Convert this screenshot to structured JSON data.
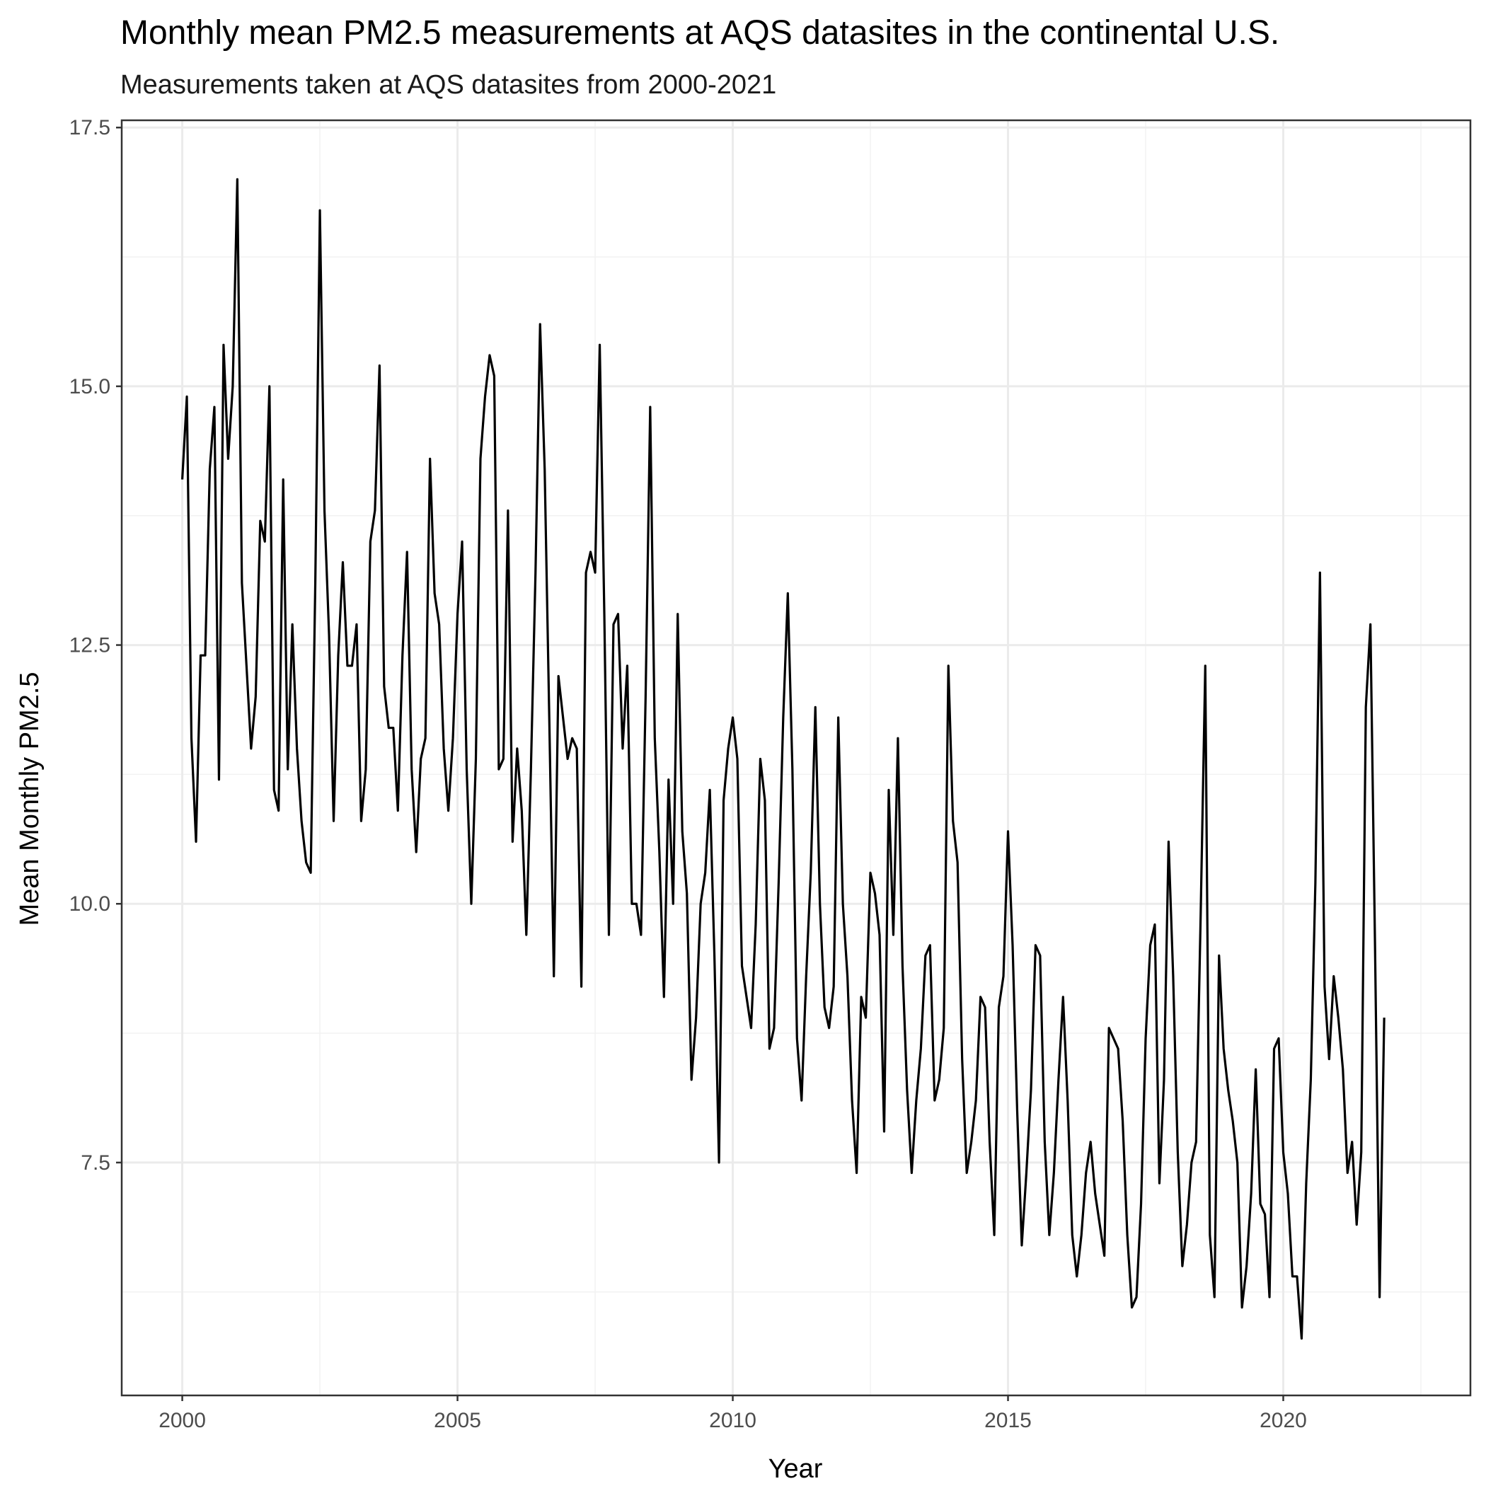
{
  "chart_data": {
    "type": "line",
    "title": "Monthly mean PM2.5 measurements at AQS datasites in the continental U.S.",
    "subtitle": "Measurements taken at AQS datasites from 2000-2021",
    "xlabel": "Year",
    "ylabel": "Mean Monthly PM2.5",
    "xlim": [
      1998.9,
      2023.4
    ],
    "ylim": [
      5.25,
      17.57
    ],
    "x_ticks": [
      2000,
      2005,
      2010,
      2015,
      2020
    ],
    "x_tick_labels": [
      "2000",
      "2005",
      "2010",
      "2015",
      "2020"
    ],
    "y_ticks": [
      7.5,
      10.0,
      12.5,
      15.0,
      17.5
    ],
    "y_tick_labels": [
      "7.5",
      "10.0",
      "12.5",
      "15.0",
      "17.5"
    ],
    "grid": true,
    "line_color": "#000000",
    "start": "2000-01",
    "interval": "monthly",
    "series": [
      {
        "values": [
          14.1,
          14.9,
          11.6,
          10.6,
          12.4,
          12.4,
          14.2,
          14.8,
          11.2,
          15.4,
          14.3,
          15.0,
          17.0,
          13.1,
          12.3,
          11.5,
          12.0,
          13.7,
          13.5,
          15.0,
          11.1,
          10.9,
          14.1,
          11.3,
          12.7,
          11.5,
          10.8,
          10.4,
          10.3,
          13.1,
          16.7,
          13.8,
          12.6,
          10.8,
          12.4,
          13.3,
          12.3,
          12.3,
          12.7,
          10.8,
          11.3,
          13.5,
          13.8,
          15.2,
          12.1,
          11.7,
          11.7,
          10.9,
          12.4,
          13.4,
          11.3,
          10.5,
          11.4,
          11.6,
          14.3,
          13.0,
          12.7,
          11.5,
          10.9,
          11.6,
          12.8,
          13.5,
          11.3,
          10.0,
          11.4,
          14.3,
          14.9,
          15.3,
          15.1,
          11.3,
          11.4,
          13.8,
          10.6,
          11.5,
          10.9,
          9.7,
          11.3,
          13.2,
          15.6,
          14.2,
          11.8,
          9.3,
          12.2,
          11.8,
          11.4,
          11.6,
          11.5,
          9.2,
          13.2,
          13.4,
          13.2,
          15.4,
          12.8,
          9.7,
          12.7,
          12.8,
          11.5,
          12.3,
          10.0,
          10.0,
          9.7,
          12.0,
          14.8,
          11.6,
          10.5,
          9.1,
          11.2,
          10.0,
          12.8,
          10.7,
          10.1,
          8.3,
          8.9,
          10.0,
          10.3,
          11.1,
          9.5,
          7.5,
          11.0,
          11.5,
          11.8,
          11.4,
          9.4,
          9.1,
          8.8,
          9.8,
          11.4,
          11.0,
          8.6,
          8.8,
          10.2,
          11.8,
          13.0,
          11.3,
          8.7,
          8.1,
          9.3,
          10.3,
          11.9,
          10.0,
          9.0,
          8.8,
          9.2,
          11.8,
          10.0,
          9.3,
          8.1,
          7.4,
          9.1,
          8.9,
          10.3,
          10.1,
          9.7,
          7.8,
          11.1,
          9.7,
          11.6,
          9.4,
          8.2,
          7.4,
          8.1,
          8.6,
          9.5,
          9.6,
          8.1,
          8.3,
          8.8,
          12.3,
          10.8,
          10.4,
          8.5,
          7.4,
          7.7,
          8.1,
          9.1,
          9.0,
          7.7,
          6.8,
          9.0,
          9.3,
          10.7,
          9.6,
          8.0,
          6.7,
          7.4,
          8.2,
          9.6,
          9.5,
          7.7,
          6.8,
          7.4,
          8.3,
          9.1,
          8.1,
          6.8,
          6.4,
          6.8,
          7.4,
          7.7,
          7.2,
          6.9,
          6.6,
          8.8,
          8.7,
          8.6,
          7.9,
          6.8,
          6.1,
          6.2,
          7.1,
          8.7,
          9.6,
          9.8,
          7.3,
          8.3,
          10.6,
          9.3,
          7.6,
          6.5,
          6.9,
          7.5,
          7.7,
          9.9,
          12.3,
          6.8,
          6.2,
          9.5,
          8.6,
          8.2,
          7.9,
          7.5,
          6.1,
          6.5,
          7.2,
          8.4,
          7.1,
          7.0,
          6.2,
          8.6,
          8.7,
          7.6,
          7.2,
          6.4,
          6.4,
          5.8,
          7.3,
          8.3,
          10.2,
          13.2,
          9.2,
          8.5,
          9.3,
          8.9,
          8.4,
          7.4,
          7.7,
          6.9,
          7.6,
          11.9,
          12.7,
          9.6,
          6.2,
          8.9
        ]
      }
    ]
  }
}
